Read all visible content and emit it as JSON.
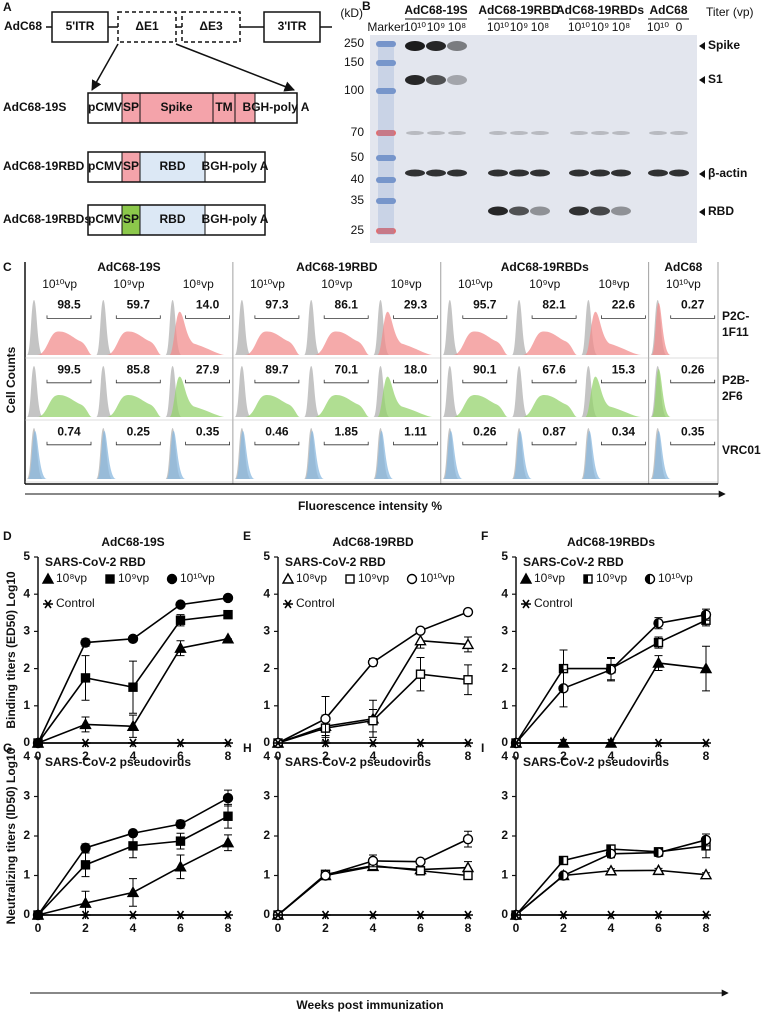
{
  "panel_a": {
    "label": "A",
    "vector": {
      "name": "AdC68",
      "segments": [
        "5'ITR",
        "ΔE1",
        "ΔE3",
        "3'ITR"
      ]
    },
    "constructs": [
      {
        "name": "AdC68-19S",
        "segments": [
          "pCMV",
          "SP",
          "Spike",
          "TM",
          "BGH-poly A"
        ]
      },
      {
        "name": "AdC68-19RBD",
        "segments": [
          "pCMV",
          "SP",
          "RBD",
          "BGH-poly A"
        ]
      },
      {
        "name": "AdC68-19RBDs",
        "segments": [
          "pCMV",
          "SP",
          "RBD",
          "BGH-poly A"
        ]
      }
    ]
  },
  "panel_b": {
    "label": "B",
    "unit": "(kD)",
    "marker": "Marker",
    "titer_label": "Titer (vp)",
    "groups": [
      {
        "name": "AdC68-19S",
        "lanes": [
          "10¹⁰",
          "10⁹",
          "10⁸"
        ]
      },
      {
        "name": "AdC68-19RBD",
        "lanes": [
          "10¹⁰",
          "10⁹",
          "10⁸"
        ]
      },
      {
        "name": "AdC68-19RBDs",
        "lanes": [
          "10¹⁰",
          "10⁹",
          "10⁸"
        ]
      },
      {
        "name": "AdC68",
        "lanes": [
          "10¹⁰",
          "0"
        ]
      }
    ],
    "ladder": [
      "250",
      "150",
      "100",
      "70",
      "50",
      "40",
      "35",
      "25"
    ],
    "bands": [
      "Spike",
      "S1",
      "β-actin",
      "RBD"
    ]
  },
  "panel_c": {
    "label": "C",
    "groups": [
      {
        "name": "AdC68-19S",
        "titers": [
          "10¹⁰vp",
          "10⁹vp",
          "10⁸vp"
        ]
      },
      {
        "name": "AdC68-19RBD",
        "titers": [
          "10¹⁰vp",
          "10⁹vp",
          "10⁸vp"
        ]
      },
      {
        "name": "AdC68-19RBDs",
        "titers": [
          "10¹⁰vp",
          "10⁹vp",
          "10⁸vp"
        ]
      },
      {
        "name": "AdC68",
        "titers": [
          "10¹⁰vp"
        ]
      }
    ],
    "rows": [
      {
        "label": [
          "P2C-",
          "1F11"
        ],
        "values": [
          "98.5",
          "59.7",
          "14.0",
          "97.3",
          "86.1",
          "29.3",
          "95.7",
          "82.1",
          "22.6",
          "0.27"
        ]
      },
      {
        "label": [
          "P2B-",
          "2F6"
        ],
        "values": [
          "99.5",
          "85.8",
          "27.9",
          "89.7",
          "70.1",
          "18.0",
          "90.1",
          "67.6",
          "15.3",
          "0.26"
        ]
      },
      {
        "label": [
          "VRC01"
        ],
        "values": [
          "0.74",
          "0.25",
          "0.35",
          "0.46",
          "1.85",
          "1.11",
          "0.26",
          "0.87",
          "0.34",
          "0.35"
        ]
      }
    ],
    "y_label": "Cell Counts",
    "x_label": "Fluorescence intensity %"
  },
  "shared": {
    "x_label": "Weeks post immunization"
  },
  "chart_data": [
    {
      "type": "line",
      "panel": "D",
      "title": "AdC68-19S",
      "subtitle": "SARS-CoV-2 RBD",
      "ylabel": "Binding titers (ED50) Log10",
      "x": [
        0,
        2,
        4,
        6,
        8
      ],
      "xlim": [
        0,
        8
      ],
      "xticks": [
        0,
        2,
        4,
        6,
        8
      ],
      "ylim": [
        0,
        5
      ],
      "yticks": [
        0,
        1,
        2,
        3,
        4,
        5
      ],
      "legend": true,
      "series": [
        {
          "name": "10⁸vp",
          "color": "#000000",
          "marker": "triangle",
          "fill": "full",
          "values": [
            0,
            0.5,
            0.45,
            2.55,
            2.8
          ],
          "errors": [
            0,
            0.2,
            0.3,
            0.2,
            0
          ]
        },
        {
          "name": "10⁹vp",
          "color": "#000000",
          "marker": "square",
          "fill": "full",
          "values": [
            0,
            1.75,
            1.5,
            3.3,
            3.45
          ],
          "errors": [
            0,
            0.6,
            0.7,
            0.15,
            0
          ]
        },
        {
          "name": "10¹⁰vp",
          "color": "#000000",
          "marker": "circle",
          "fill": "full",
          "values": [
            0,
            2.7,
            2.8,
            3.72,
            3.9
          ],
          "errors": [
            0,
            0.1,
            0,
            0.05,
            0
          ]
        },
        {
          "name": "Control",
          "color": "#000000",
          "marker": "star",
          "fill": "full",
          "values": [
            0,
            0,
            0,
            0,
            0
          ],
          "errors": [
            0,
            0,
            0,
            0,
            0
          ]
        }
      ]
    },
    {
      "type": "line",
      "panel": "E",
      "title": "AdC68-19RBD",
      "subtitle": "SARS-CoV-2 RBD",
      "x": [
        0,
        2,
        4,
        6,
        8
      ],
      "xlim": [
        0,
        8
      ],
      "xticks": [
        0,
        2,
        4,
        6,
        8
      ],
      "ylim": [
        0,
        5
      ],
      "yticks": [
        0,
        1,
        2,
        3,
        4,
        5
      ],
      "legend": true,
      "series": [
        {
          "name": "10⁸vp",
          "color": "#000000",
          "marker": "triangle",
          "fill": "open",
          "values": [
            0,
            0.45,
            0.65,
            2.75,
            2.65
          ],
          "errors": [
            0,
            0.3,
            0.5,
            0.2,
            0.2
          ]
        },
        {
          "name": "10⁹vp",
          "color": "#000000",
          "marker": "square",
          "fill": "open",
          "values": [
            0,
            0.4,
            0.6,
            1.85,
            1.7
          ],
          "errors": [
            0,
            0.2,
            0.3,
            0.45,
            0.4
          ]
        },
        {
          "name": "10¹⁰vp",
          "color": "#000000",
          "marker": "circle",
          "fill": "open",
          "values": [
            0,
            0.65,
            2.17,
            3.02,
            3.52
          ],
          "errors": [
            0,
            0.6,
            0.1,
            0.05,
            0.05
          ]
        },
        {
          "name": "Control",
          "color": "#000000",
          "marker": "star",
          "fill": "full",
          "values": [
            0,
            0,
            0,
            0,
            0
          ],
          "errors": [
            0,
            0,
            0,
            0,
            0
          ]
        }
      ]
    },
    {
      "type": "line",
      "panel": "F",
      "title": "AdC68-19RBDs",
      "subtitle": "SARS-CoV-2 RBD",
      "x": [
        0,
        2,
        4,
        6,
        8
      ],
      "xlim": [
        0,
        8
      ],
      "xticks": [
        0,
        2,
        4,
        6,
        8
      ],
      "ylim": [
        0,
        5
      ],
      "yticks": [
        0,
        1,
        2,
        3,
        4,
        5
      ],
      "legend": true,
      "series": [
        {
          "name": "10⁸vp",
          "color": "#000000",
          "marker": "triangle",
          "fill": "full",
          "values": [
            0,
            0,
            0,
            2.15,
            2.0
          ],
          "errors": [
            0,
            0,
            0,
            0.2,
            0.6
          ]
        },
        {
          "name": "10⁹vp",
          "color": "#000000",
          "marker": "square",
          "fill": "half",
          "values": [
            0,
            2.0,
            2.0,
            2.7,
            3.3
          ],
          "errors": [
            0,
            0.5,
            0.3,
            0.15,
            0.15
          ]
        },
        {
          "name": "10¹⁰vp",
          "color": "#000000",
          "marker": "circle",
          "fill": "half",
          "values": [
            0,
            1.47,
            1.97,
            3.22,
            3.45
          ],
          "errors": [
            0,
            0.5,
            0.3,
            0.15,
            0.15
          ]
        },
        {
          "name": "Control",
          "color": "#000000",
          "marker": "star",
          "fill": "full",
          "values": [
            0,
            0,
            0,
            0,
            0
          ],
          "errors": [
            0,
            0,
            0,
            0,
            0
          ]
        }
      ]
    },
    {
      "type": "line",
      "panel": "G",
      "subtitle": "SARS-CoV-2 pseudovirus",
      "ylabel": "Neutralizing titers (ID50) Log10",
      "x": [
        0,
        2,
        4,
        6,
        8
      ],
      "xlim": [
        0,
        8
      ],
      "xticks": [
        0,
        2,
        4,
        6,
        8
      ],
      "ylim": [
        0,
        4
      ],
      "yticks": [
        0,
        1,
        2,
        3,
        4
      ],
      "legend": false,
      "series": [
        {
          "name": "10⁸vp",
          "color": "#000000",
          "marker": "triangle",
          "fill": "full",
          "values": [
            0,
            0.3,
            0.57,
            1.22,
            1.83
          ],
          "errors": [
            0,
            0.3,
            0.35,
            0.3,
            0.2
          ]
        },
        {
          "name": "10⁹vp",
          "color": "#000000",
          "marker": "square",
          "fill": "full",
          "values": [
            0,
            1.27,
            1.75,
            1.87,
            2.5
          ],
          "errors": [
            0,
            0.3,
            0.3,
            0.2,
            0.3
          ]
        },
        {
          "name": "10¹⁰vp",
          "color": "#000000",
          "marker": "circle",
          "fill": "full",
          "values": [
            0,
            1.7,
            2.07,
            2.3,
            2.96
          ],
          "errors": [
            0,
            0.1,
            0,
            0.1,
            0.2
          ]
        },
        {
          "name": "Control",
          "color": "#000000",
          "marker": "star",
          "fill": "full",
          "values": [
            0,
            0,
            0,
            0,
            0
          ],
          "errors": [
            0,
            0,
            0,
            0,
            0
          ]
        }
      ]
    },
    {
      "type": "line",
      "panel": "H",
      "subtitle": "SARS-CoV-2 pseudovirus",
      "x": [
        0,
        2,
        4,
        6,
        8
      ],
      "xlim": [
        0,
        8
      ],
      "xticks": [
        0,
        2,
        4,
        6,
        8
      ],
      "ylim": [
        0,
        4
      ],
      "yticks": [
        0,
        1,
        2,
        3,
        4
      ],
      "legend": false,
      "series": [
        {
          "name": "10⁸vp",
          "color": "#000000",
          "marker": "triangle",
          "fill": "open",
          "values": [
            0,
            1.0,
            1.23,
            1.15,
            1.2
          ],
          "errors": [
            0,
            0.05,
            0.1,
            0.05,
            0.15
          ]
        },
        {
          "name": "10⁹vp",
          "color": "#000000",
          "marker": "square",
          "fill": "open",
          "values": [
            0,
            1.03,
            1.25,
            1.12,
            1.0
          ],
          "errors": [
            0,
            0.05,
            0.1,
            0.1,
            0.1
          ]
        },
        {
          "name": "10¹⁰vp",
          "color": "#000000",
          "marker": "circle",
          "fill": "open",
          "values": [
            0,
            1.0,
            1.37,
            1.35,
            1.92
          ],
          "errors": [
            0,
            0.05,
            0.15,
            0.05,
            0.2
          ]
        },
        {
          "name": "Control",
          "color": "#000000",
          "marker": "star",
          "fill": "full",
          "values": [
            0,
            0,
            0,
            0,
            0
          ],
          "errors": [
            0,
            0,
            0,
            0,
            0
          ]
        }
      ]
    },
    {
      "type": "line",
      "panel": "I",
      "subtitle": "SARS-CoV-2 pseudovirus",
      "x": [
        0,
        2,
        4,
        6,
        8
      ],
      "xlim": [
        0,
        8
      ],
      "xticks": [
        0,
        2,
        4,
        6,
        8
      ],
      "ylim": [
        0,
        4
      ],
      "yticks": [
        0,
        1,
        2,
        3,
        4
      ],
      "legend": false,
      "series": [
        {
          "name": "10⁸vp",
          "color": "#000000",
          "marker": "triangle",
          "fill": "open",
          "values": [
            0,
            1.0,
            1.12,
            1.13,
            1.02
          ],
          "errors": [
            0,
            0.05,
            0.05,
            0.05,
            0.05
          ]
        },
        {
          "name": "10⁹vp",
          "color": "#000000",
          "marker": "square",
          "fill": "half",
          "values": [
            0,
            1.38,
            1.67,
            1.6,
            1.75
          ],
          "errors": [
            0,
            0.05,
            0.1,
            0.1,
            0.3
          ]
        },
        {
          "name": "10¹⁰vp",
          "color": "#000000",
          "marker": "circle",
          "fill": "half",
          "values": [
            0,
            1.0,
            1.55,
            1.58,
            1.9
          ],
          "errors": [
            0,
            0.05,
            0.1,
            0.1,
            0.15
          ]
        },
        {
          "name": "Control",
          "color": "#000000",
          "marker": "star",
          "fill": "full",
          "values": [
            0,
            0,
            0,
            0,
            0
          ],
          "errors": [
            0,
            0,
            0,
            0,
            0
          ]
        }
      ]
    }
  ]
}
